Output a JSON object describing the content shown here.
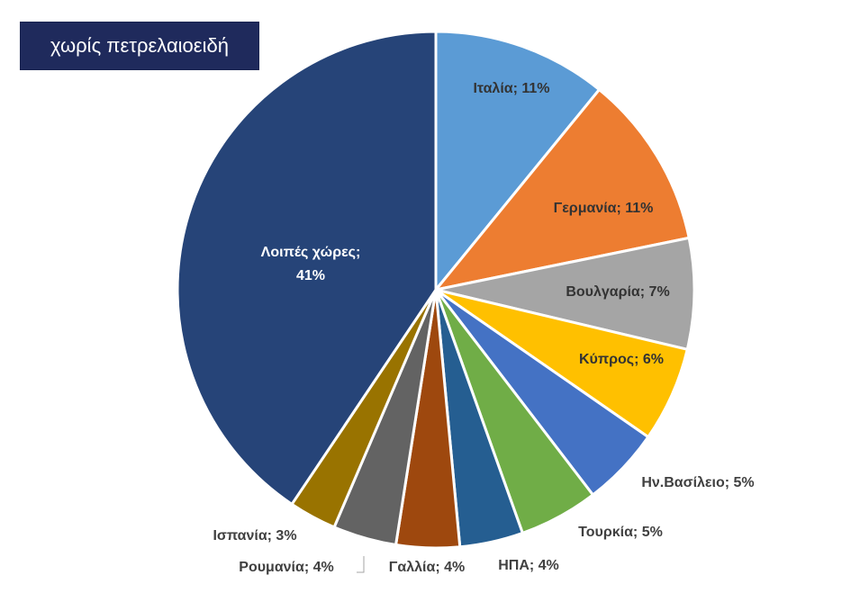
{
  "chart_data": {
    "type": "pie",
    "title": "χωρίς πετρελαιοειδή",
    "slices": [
      {
        "label": "Ιταλία; 11%",
        "value": 11,
        "color": "#5b9bd5"
      },
      {
        "label": "Γερμανία; 11%",
        "value": 11,
        "color": "#ed7d31"
      },
      {
        "label": "Βουλγαρία; 7%",
        "value": 7,
        "color": "#a5a5a5"
      },
      {
        "label": "Κύπρος; 6%",
        "value": 6,
        "color": "#ffc000"
      },
      {
        "label": "Ην.Βασίλειο; 5%",
        "value": 5,
        "color": "#4472c4"
      },
      {
        "label": "Τουρκία; 5%",
        "value": 5,
        "color": "#70ad47"
      },
      {
        "label": "ΗΠΑ; 4%",
        "value": 4,
        "color": "#255e91"
      },
      {
        "label": "Γαλλία; 4%",
        "value": 4,
        "color": "#9e480e"
      },
      {
        "label": "Ρουμανία; 4%",
        "value": 4,
        "color": "#636363"
      },
      {
        "label": "Ισπανία; 3%",
        "value": 3,
        "color": "#997300"
      },
      {
        "label": "Λοιπές χώρες; 41%",
        "value": 41,
        "color": "#264478"
      }
    ]
  }
}
